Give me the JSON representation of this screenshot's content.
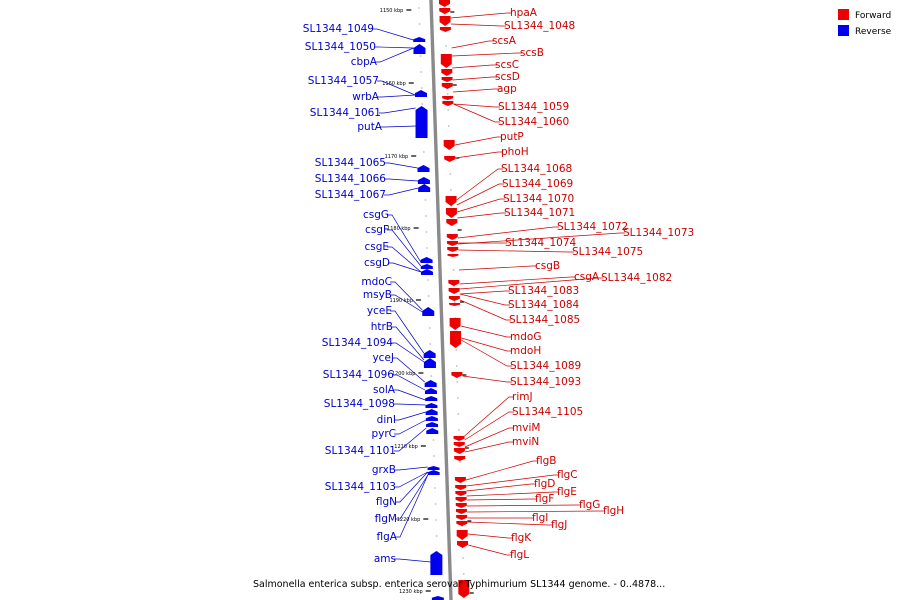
{
  "caption": "Salmonella enterica subsp. enterica serovar Typhimurium SL1344 genome. - 0..4878...",
  "legend": [
    {
      "label": "Forward",
      "color": "#ee0000"
    },
    {
      "label": "Reverse",
      "color": "#0000ee"
    }
  ],
  "kbp_ticks": [
    {
      "label": "1150 kbp",
      "kbp": 1150
    },
    {
      "label": "1160 kbp",
      "kbp": 1160
    },
    {
      "label": "1170 kbp",
      "kbp": 1170
    },
    {
      "label": "1180 kbp",
      "kbp": 1180
    },
    {
      "label": "1190 kbp",
      "kbp": 1190
    },
    {
      "label": "1200 kbp",
      "kbp": 1200
    },
    {
      "label": "1210 kbp",
      "kbp": 1210
    },
    {
      "label": "1220 kbp",
      "kbp": 1220
    },
    {
      "label": "1230 kbp",
      "kbp": 1230
    }
  ],
  "forward_genes": [
    "hpaA",
    "SL1344_1048",
    "scsA",
    "scsB",
    "scsC",
    "scsD",
    "agp",
    "SL1344_1059",
    "SL1344_1060",
    "putP",
    "phoH",
    "SL1344_1068",
    "SL1344_1069",
    "SL1344_1070",
    "SL1344_1071",
    "SL1344_1072",
    "SL1344_1073",
    "SL1344_1074",
    "SL1344_1075",
    "csgB",
    "csgA",
    "SL1344_1082",
    "SL1344_1083",
    "SL1344_1084",
    "SL1344_1085",
    "mdoG",
    "mdoH",
    "SL1344_1089",
    "SL1344_1093",
    "rimJ",
    "SL1344_1105",
    "mviM",
    "mviN",
    "flgB",
    "flgC",
    "flgD",
    "flgE",
    "flgF",
    "flgG",
    "flgH",
    "flgI",
    "flgJ",
    "flgK",
    "flgL"
  ],
  "reverse_genes": [
    "SL1344_1049",
    "SL1344_1050",
    "cbpA",
    "SL1344_1057",
    "wrbA",
    "SL1344_1061",
    "putA",
    "SL1344_1065",
    "SL1344_1066",
    "SL1344_1067",
    "csgG",
    "csgF",
    "csgE",
    "csgD",
    "mdoC",
    "msyB",
    "yceE",
    "htrB",
    "SL1344_1094",
    "yceJ",
    "SL1344_1096",
    "solA",
    "SL1344_1098",
    "dinI",
    "pyrC",
    "SL1344_1101",
    "grxB",
    "SL1344_1103",
    "flgN",
    "flgM",
    "flgA",
    "ams"
  ]
}
